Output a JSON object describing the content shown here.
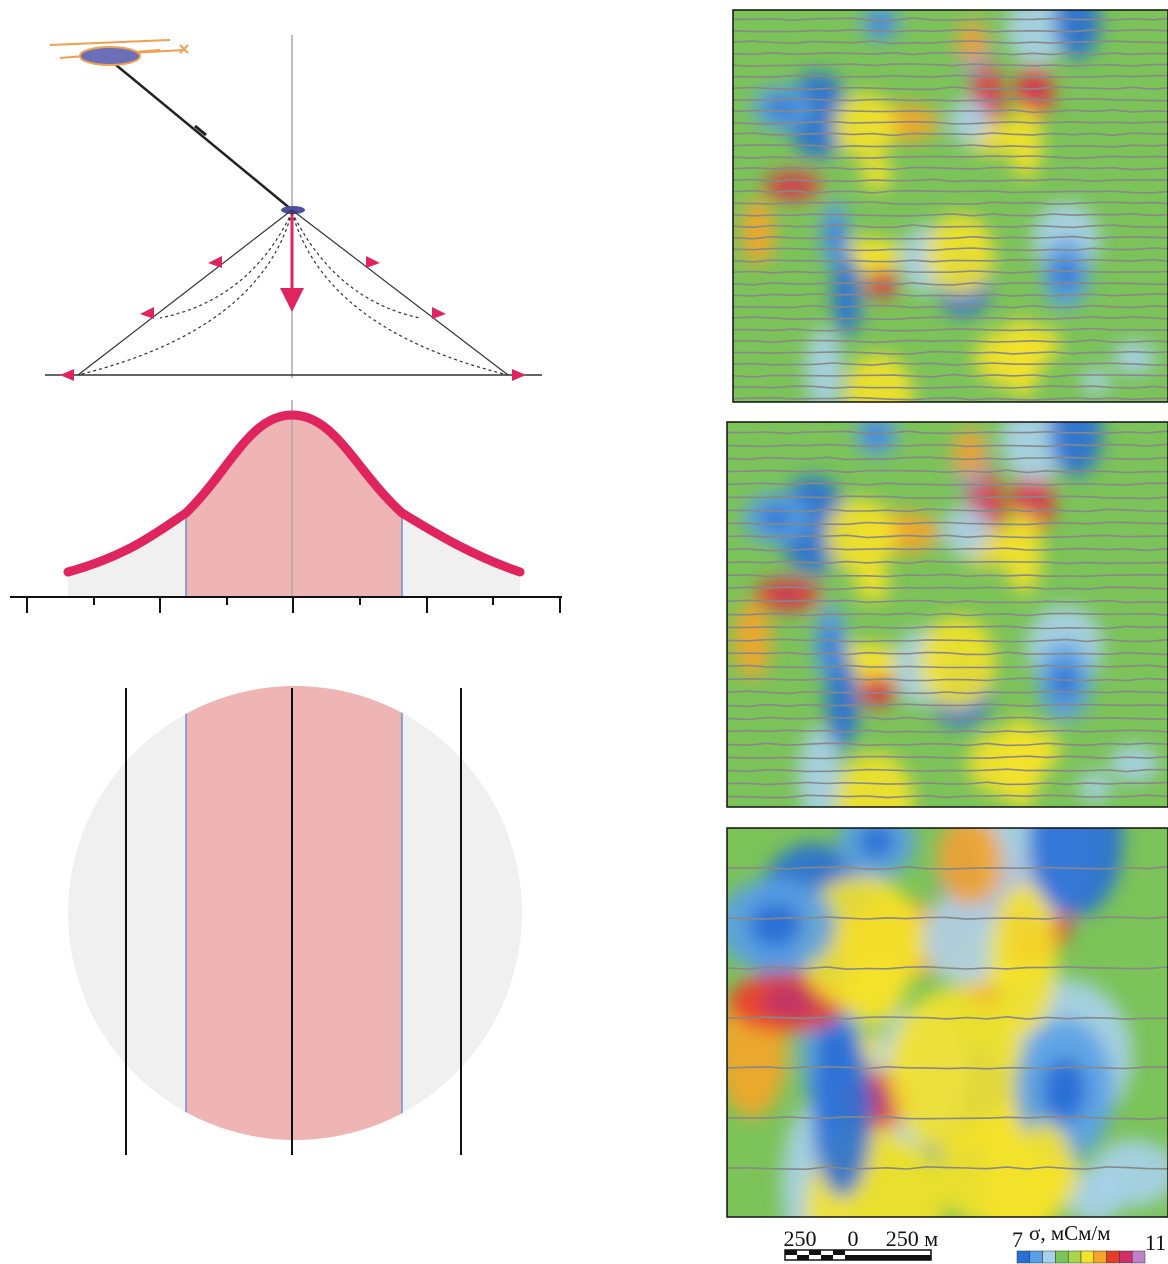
{
  "scale_bar": {
    "labels": [
      "250",
      "0",
      "250 м"
    ]
  },
  "colorbar": {
    "min_label": "7",
    "title": "σ, мСм/м",
    "max_label": "11"
  }
}
